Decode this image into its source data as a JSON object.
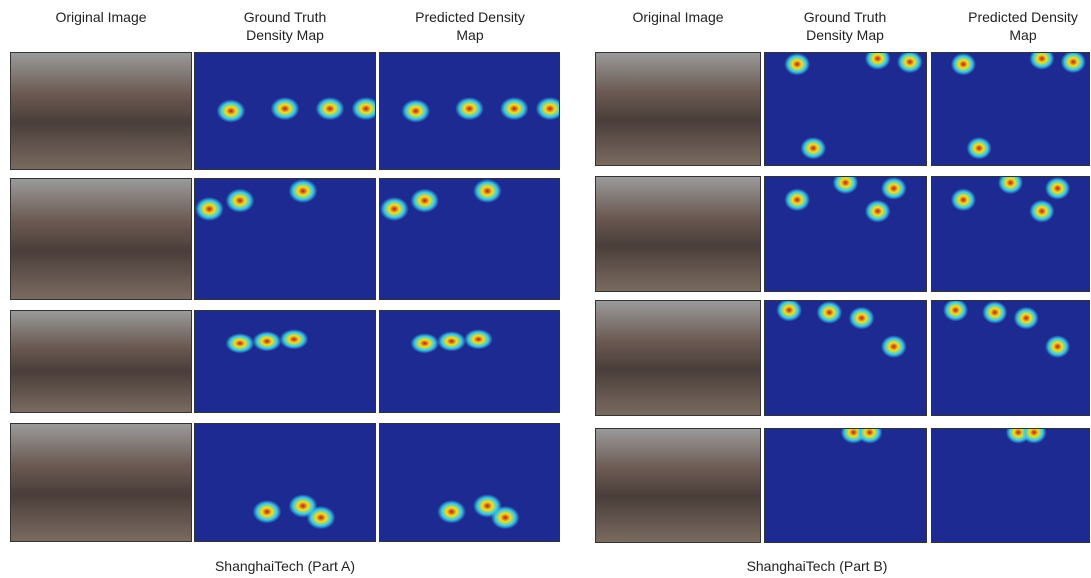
{
  "panels": [
    {
      "columns": [
        "Original Image",
        "Ground Truth Density Map",
        "Predicted Density Map"
      ],
      "caption": "ShanghaiTech (Part A)"
    },
    {
      "columns": [
        "Original Image",
        "Ground Truth Density Map",
        "Predicted Density Map"
      ],
      "caption": "ShanghaiTech (Part B)"
    }
  ]
}
